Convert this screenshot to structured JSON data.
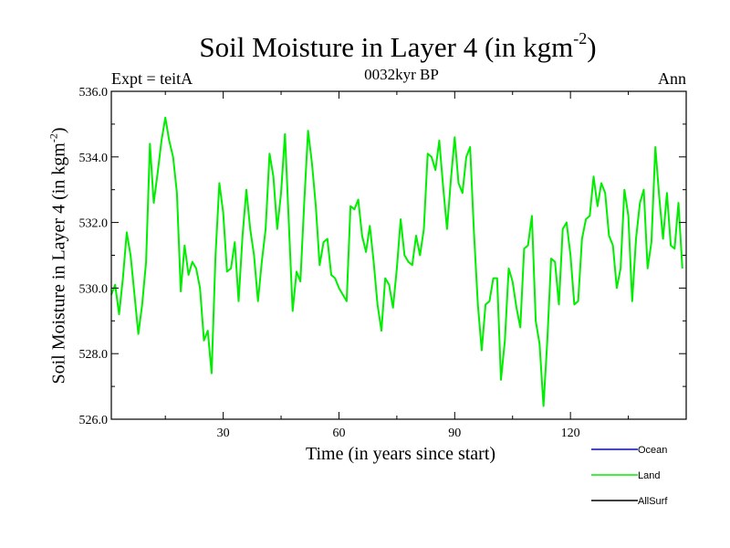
{
  "header": {
    "title_main": "Soil Moisture in Layer 4 (in kgm",
    "title_exp": "-2",
    "title_close": ")",
    "experiment": "Expt = teitA",
    "subtitle": "0032kyr BP",
    "season": "Ann"
  },
  "chart_data": {
    "type": "line",
    "xlabel": "Time (in years since start)",
    "ylabel_main": "Soil Moisture in Layer 4 (in kgm",
    "ylabel_exp": "-2",
    "ylabel_close": ")",
    "xlim": [
      1,
      150
    ],
    "ylim": [
      526.0,
      536.0
    ],
    "x_ticks": [
      30,
      60,
      90,
      120
    ],
    "y_ticks": [
      "526.0",
      "528.0",
      "530.0",
      "532.0",
      "534.0",
      "536.0"
    ],
    "legend": [
      {
        "name": "Ocean",
        "color": "#0000ff"
      },
      {
        "name": "Land",
        "color": "#00ee00"
      },
      {
        "name": "AllSurf",
        "color": "#000000"
      }
    ],
    "series": [
      {
        "name": "Land",
        "color": "#00ee00",
        "x_start": 1,
        "x_step": 1,
        "values": [
          529.8,
          530.1,
          529.2,
          530.3,
          531.7,
          531.0,
          529.8,
          528.6,
          529.5,
          530.8,
          534.4,
          532.6,
          533.5,
          534.5,
          535.2,
          534.5,
          534.0,
          532.9,
          529.9,
          531.3,
          530.4,
          530.8,
          530.6,
          530.0,
          528.4,
          528.7,
          527.4,
          531.0,
          533.2,
          532.3,
          530.5,
          530.6,
          531.4,
          529.6,
          531.6,
          533.0,
          531.8,
          531.0,
          529.6,
          530.8,
          531.8,
          534.1,
          533.4,
          531.8,
          532.9,
          534.7,
          532.0,
          529.3,
          530.5,
          530.2,
          532.6,
          534.8,
          533.8,
          532.5,
          530.7,
          531.4,
          531.5,
          530.4,
          530.3,
          530.0,
          529.8,
          529.6,
          532.5,
          532.4,
          532.7,
          531.6,
          531.1,
          531.9,
          530.8,
          529.5,
          528.7,
          530.3,
          530.1,
          529.4,
          530.6,
          532.1,
          531.0,
          530.8,
          530.7,
          531.6,
          531.0,
          531.8,
          534.1,
          534.0,
          533.6,
          534.5,
          533.1,
          531.8,
          533.3,
          534.6,
          533.2,
          532.9,
          534.0,
          534.3,
          531.7,
          529.5,
          528.1,
          529.5,
          529.6,
          530.3,
          530.3,
          527.2,
          528.4,
          530.6,
          530.2,
          529.4,
          528.8,
          531.2,
          531.3,
          532.2,
          529.0,
          528.3,
          526.4,
          528.4,
          530.9,
          530.8,
          529.5,
          531.8,
          532.0,
          531.0,
          529.5,
          529.6,
          531.5,
          532.1,
          532.2,
          533.4,
          532.5,
          533.2,
          532.9,
          531.6,
          531.3,
          530.0,
          530.6,
          533.0,
          532.2,
          529.6,
          531.5,
          532.6,
          533.0,
          530.6,
          531.4,
          534.3,
          532.8,
          531.5,
          532.9,
          531.3,
          531.2,
          532.6,
          530.6
        ]
      }
    ]
  }
}
